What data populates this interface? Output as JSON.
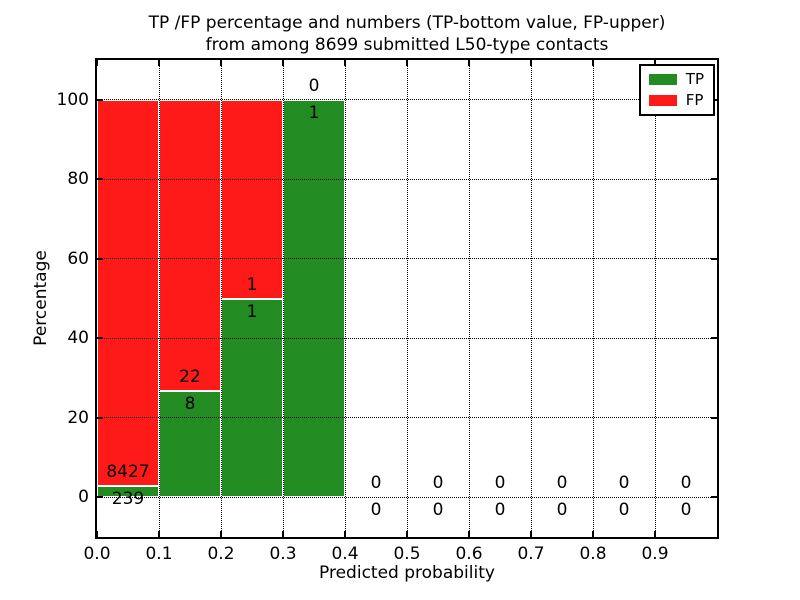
{
  "title": {
    "line1": "TP /FP percentage and numbers (TP-bottom value, FP-upper)",
    "line2": "from among 8699 submitted L50-type contacts"
  },
  "chart_data": {
    "type": "bar",
    "stacked": true,
    "title": "TP /FP percentage and numbers (TP-bottom value, FP-upper) from among 8699 submitted L50-type contacts",
    "xlabel": "Predicted probability",
    "ylabel": "Percentage",
    "total_submitted": 8699,
    "xlim": [
      0.0,
      1.0
    ],
    "ylim": [
      -10,
      110
    ],
    "x_ticks": [
      "0.0",
      "0.1",
      "0.2",
      "0.3",
      "0.4",
      "0.5",
      "0.6",
      "0.7",
      "0.8",
      "0.9"
    ],
    "y_ticks": [
      0,
      20,
      40,
      60,
      80,
      100
    ],
    "grid": "dotted",
    "legend": {
      "position": "upper right",
      "entries": [
        {
          "label": "TP",
          "color": "#228b22"
        },
        {
          "label": "FP",
          "color": "#ff1a1a"
        }
      ]
    },
    "bins": [
      {
        "x_range": [
          0.0,
          0.1
        ],
        "tp_count": 239,
        "fp_count": 8427,
        "tp_pct": 2.76,
        "fp_pct": 97.24
      },
      {
        "x_range": [
          0.1,
          0.2
        ],
        "tp_count": 8,
        "fp_count": 22,
        "tp_pct": 26.67,
        "fp_pct": 73.33
      },
      {
        "x_range": [
          0.2,
          0.3
        ],
        "tp_count": 1,
        "fp_count": 1,
        "tp_pct": 50.0,
        "fp_pct": 50.0
      },
      {
        "x_range": [
          0.3,
          0.4
        ],
        "tp_count": 1,
        "fp_count": 0,
        "tp_pct": 100.0,
        "fp_pct": 0.0
      },
      {
        "x_range": [
          0.4,
          0.5
        ],
        "tp_count": 0,
        "fp_count": 0,
        "tp_pct": 0.0,
        "fp_pct": 0.0
      },
      {
        "x_range": [
          0.5,
          0.6
        ],
        "tp_count": 0,
        "fp_count": 0,
        "tp_pct": 0.0,
        "fp_pct": 0.0
      },
      {
        "x_range": [
          0.6,
          0.7
        ],
        "tp_count": 0,
        "fp_count": 0,
        "tp_pct": 0.0,
        "fp_pct": 0.0
      },
      {
        "x_range": [
          0.7,
          0.8
        ],
        "tp_count": 0,
        "fp_count": 0,
        "tp_pct": 0.0,
        "fp_pct": 0.0
      },
      {
        "x_range": [
          0.8,
          0.9
        ],
        "tp_count": 0,
        "fp_count": 0,
        "tp_pct": 0.0,
        "fp_pct": 0.0
      },
      {
        "x_range": [
          0.9,
          1.0
        ],
        "tp_count": 0,
        "fp_count": 0,
        "tp_pct": 0.0,
        "fp_pct": 0.0
      }
    ]
  }
}
